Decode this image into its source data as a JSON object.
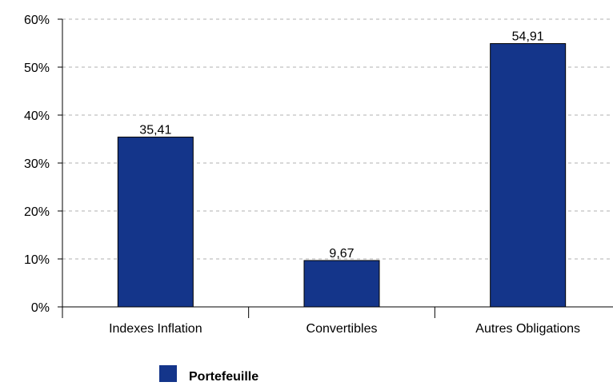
{
  "chart_data": {
    "type": "bar",
    "categories": [
      "Indexes Inflation",
      "Convertibles",
      "Autres Obligations"
    ],
    "series": [
      {
        "name": "Portefeuille",
        "values": [
          35.41,
          9.67,
          54.91
        ],
        "value_labels": [
          "35,41",
          "9,67",
          "54,91"
        ],
        "color": "#14358a"
      }
    ],
    "ylim": [
      0,
      60
    ],
    "y_ticks": [
      0,
      10,
      20,
      30,
      40,
      50,
      60
    ],
    "y_tick_labels": [
      "0%",
      "10%",
      "20%",
      "30%",
      "40%",
      "50%",
      "60%"
    ],
    "grid": true,
    "legend_position": "bottom",
    "colors": {
      "bar": "#14358a",
      "grid": "#cccccc",
      "axis": "#000000",
      "text": "#000000"
    }
  }
}
